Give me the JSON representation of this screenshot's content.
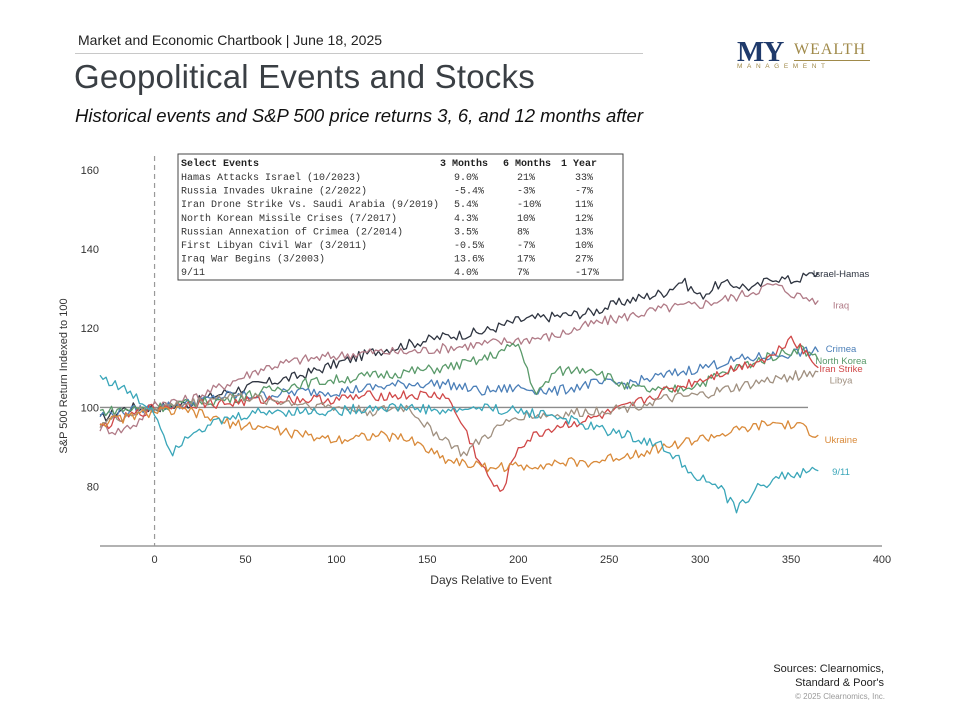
{
  "header": {
    "chartbook_line": "Market and Economic Chartbook | June 18, 2025",
    "title": "Geopolitical Events and Stocks",
    "subtitle": "Historical events and S&P 500 price returns 3, 6, and 12 months after"
  },
  "logo": {
    "my": "MY",
    "wealth": "WEALTH",
    "management": "MANAGEMENT"
  },
  "table": {
    "headers": [
      "Select Events",
      "3 Months",
      "6 Months",
      "1 Year"
    ],
    "rows": [
      [
        "Hamas Attacks Israel (10/2023)",
        "9.0%",
        "21%",
        "33%"
      ],
      [
        "Russia Invades Ukraine (2/2022)",
        "-5.4%",
        "-3%",
        "-7%"
      ],
      [
        "Iran Drone Strike Vs. Saudi Arabia (9/2019)",
        "5.4%",
        "-10%",
        "11%"
      ],
      [
        "North Korean Missile Crises (7/2017)",
        "4.3%",
        "10%",
        "12%"
      ],
      [
        "Russian Annexation of Crimea (2/2014)",
        "3.5%",
        "8%",
        "13%"
      ],
      [
        "First Libyan Civil War (3/2011)",
        "-0.5%",
        "-7%",
        "10%"
      ],
      [
        "Iraq War Begins (3/2003)",
        "13.6%",
        "17%",
        "27%"
      ],
      [
        "9/11",
        "4.0%",
        "7%",
        "-17%"
      ]
    ]
  },
  "chart_data": {
    "type": "line",
    "xlabel": "Days Relative to Event",
    "ylabel": "S&P 500 Return Indexed to 100",
    "xlim": [
      -30,
      400
    ],
    "ylim": [
      65,
      165
    ],
    "xticks": [
      0,
      50,
      100,
      150,
      200,
      250,
      300,
      350,
      400
    ],
    "yticks": [
      80,
      100,
      120,
      140,
      160
    ],
    "reference_line_y": 100,
    "event_line_x": 0,
    "series": [
      {
        "name": "Israel-Hamas",
        "color": "#2e3440",
        "end_label_y": 134,
        "points": [
          [
            -30,
            97
          ],
          [
            -15,
            100
          ],
          [
            0,
            100
          ],
          [
            20,
            101
          ],
          [
            40,
            104
          ],
          [
            60,
            106
          ],
          [
            80,
            108
          ],
          [
            100,
            111
          ],
          [
            120,
            114
          ],
          [
            140,
            116
          ],
          [
            160,
            118
          ],
          [
            180,
            119
          ],
          [
            200,
            122
          ],
          [
            220,
            123
          ],
          [
            240,
            124
          ],
          [
            260,
            127
          ],
          [
            280,
            129
          ],
          [
            290,
            132
          ],
          [
            300,
            128
          ],
          [
            310,
            131
          ],
          [
            320,
            131
          ],
          [
            330,
            130
          ],
          [
            340,
            133
          ],
          [
            350,
            132
          ],
          [
            365,
            134
          ]
        ]
      },
      {
        "name": "Iraq",
        "color": "#b07a86",
        "end_label_y": 126,
        "points": [
          [
            -30,
            95
          ],
          [
            -20,
            94
          ],
          [
            -10,
            96
          ],
          [
            0,
            101
          ],
          [
            20,
            102
          ],
          [
            40,
            106
          ],
          [
            60,
            110
          ],
          [
            80,
            112
          ],
          [
            100,
            113
          ],
          [
            120,
            114
          ],
          [
            140,
            114
          ],
          [
            160,
            115
          ],
          [
            180,
            116
          ],
          [
            200,
            117
          ],
          [
            220,
            118
          ],
          [
            240,
            121
          ],
          [
            260,
            123
          ],
          [
            280,
            125
          ],
          [
            300,
            126
          ],
          [
            320,
            128
          ],
          [
            340,
            131
          ],
          [
            355,
            128
          ],
          [
            365,
            127
          ]
        ]
      },
      {
        "name": "Crimea",
        "color": "#4b7fb8",
        "end_label_y": 115,
        "points": [
          [
            -30,
            98
          ],
          [
            0,
            100
          ],
          [
            20,
            101
          ],
          [
            40,
            103
          ],
          [
            60,
            103
          ],
          [
            80,
            104
          ],
          [
            100,
            104
          ],
          [
            120,
            105
          ],
          [
            140,
            106
          ],
          [
            160,
            106
          ],
          [
            180,
            104
          ],
          [
            200,
            105
          ],
          [
            220,
            104
          ],
          [
            240,
            106
          ],
          [
            260,
            106
          ],
          [
            280,
            108
          ],
          [
            300,
            110
          ],
          [
            320,
            112
          ],
          [
            340,
            113
          ],
          [
            355,
            114
          ],
          [
            365,
            114
          ]
        ]
      },
      {
        "name": "North Korea",
        "color": "#5a9a6a",
        "end_label_y": 112,
        "points": [
          [
            -30,
            99
          ],
          [
            0,
            100
          ],
          [
            20,
            101
          ],
          [
            40,
            102
          ],
          [
            60,
            104
          ],
          [
            80,
            106
          ],
          [
            100,
            107
          ],
          [
            120,
            108
          ],
          [
            140,
            109
          ],
          [
            160,
            110
          ],
          [
            180,
            112
          ],
          [
            200,
            116
          ],
          [
            210,
            103
          ],
          [
            220,
            109
          ],
          [
            240,
            110
          ],
          [
            260,
            105
          ],
          [
            280,
            104
          ],
          [
            300,
            106
          ],
          [
            320,
            110
          ],
          [
            340,
            113
          ],
          [
            355,
            115
          ],
          [
            365,
            112
          ]
        ]
      },
      {
        "name": "Iran Strike",
        "color": "#d04848",
        "end_label_y": 110,
        "points": [
          [
            -30,
            95
          ],
          [
            0,
            100
          ],
          [
            20,
            101
          ],
          [
            40,
            101
          ],
          [
            60,
            102
          ],
          [
            80,
            102
          ],
          [
            100,
            102
          ],
          [
            120,
            103
          ],
          [
            140,
            103
          ],
          [
            160,
            103
          ],
          [
            170,
            95
          ],
          [
            180,
            85
          ],
          [
            190,
            78
          ],
          [
            200,
            90
          ],
          [
            210,
            93
          ],
          [
            220,
            95
          ],
          [
            240,
            97
          ],
          [
            260,
            100
          ],
          [
            280,
            104
          ],
          [
            300,
            107
          ],
          [
            320,
            110
          ],
          [
            340,
            113
          ],
          [
            350,
            118
          ],
          [
            365,
            110
          ]
        ]
      },
      {
        "name": "Libya",
        "color": "#a09080",
        "end_label_y": 107,
        "points": [
          [
            -30,
            96
          ],
          [
            0,
            100
          ],
          [
            20,
            101
          ],
          [
            40,
            103
          ],
          [
            60,
            102
          ],
          [
            80,
            101
          ],
          [
            100,
            100
          ],
          [
            120,
            99
          ],
          [
            140,
            100
          ],
          [
            150,
            95
          ],
          [
            160,
            92
          ],
          [
            170,
            88
          ],
          [
            180,
            92
          ],
          [
            190,
            95
          ],
          [
            200,
            98
          ],
          [
            220,
            98
          ],
          [
            240,
            99
          ],
          [
            260,
            100
          ],
          [
            280,
            102
          ],
          [
            300,
            103
          ],
          [
            320,
            105
          ],
          [
            340,
            107
          ],
          [
            365,
            109
          ]
        ]
      },
      {
        "name": "Ukraine",
        "color": "#d98a3a",
        "end_label_y": 92,
        "points": [
          [
            -30,
            96
          ],
          [
            0,
            99
          ],
          [
            20,
            99
          ],
          [
            40,
            96
          ],
          [
            60,
            95
          ],
          [
            80,
            93
          ],
          [
            100,
            92
          ],
          [
            120,
            93
          ],
          [
            140,
            92
          ],
          [
            160,
            87
          ],
          [
            180,
            85
          ],
          [
            200,
            85
          ],
          [
            220,
            86
          ],
          [
            240,
            86
          ],
          [
            260,
            88
          ],
          [
            280,
            90
          ],
          [
            300,
            92
          ],
          [
            320,
            94
          ],
          [
            340,
            96
          ],
          [
            355,
            95
          ],
          [
            365,
            93
          ]
        ]
      },
      {
        "name": "9/11",
        "color": "#3aa6b9",
        "end_label_y": 84,
        "points": [
          [
            -30,
            108
          ],
          [
            -15,
            104
          ],
          [
            0,
            99
          ],
          [
            5,
            93
          ],
          [
            10,
            89
          ],
          [
            20,
            94
          ],
          [
            40,
            97
          ],
          [
            60,
            99
          ],
          [
            80,
            99
          ],
          [
            100,
            99
          ],
          [
            120,
            100
          ],
          [
            140,
            100
          ],
          [
            160,
            99
          ],
          [
            180,
            100
          ],
          [
            200,
            99
          ],
          [
            220,
            98
          ],
          [
            240,
            95
          ],
          [
            260,
            93
          ],
          [
            280,
            90
          ],
          [
            290,
            86
          ],
          [
            300,
            82
          ],
          [
            310,
            80
          ],
          [
            320,
            74
          ],
          [
            330,
            79
          ],
          [
            340,
            82
          ],
          [
            350,
            83
          ],
          [
            365,
            84
          ]
        ]
      }
    ]
  },
  "footer": {
    "sources_line1": "Sources: Clearnomics,",
    "sources_line2": "Standard & Poor's",
    "copyright": "© 2025 Clearnomics, Inc."
  }
}
